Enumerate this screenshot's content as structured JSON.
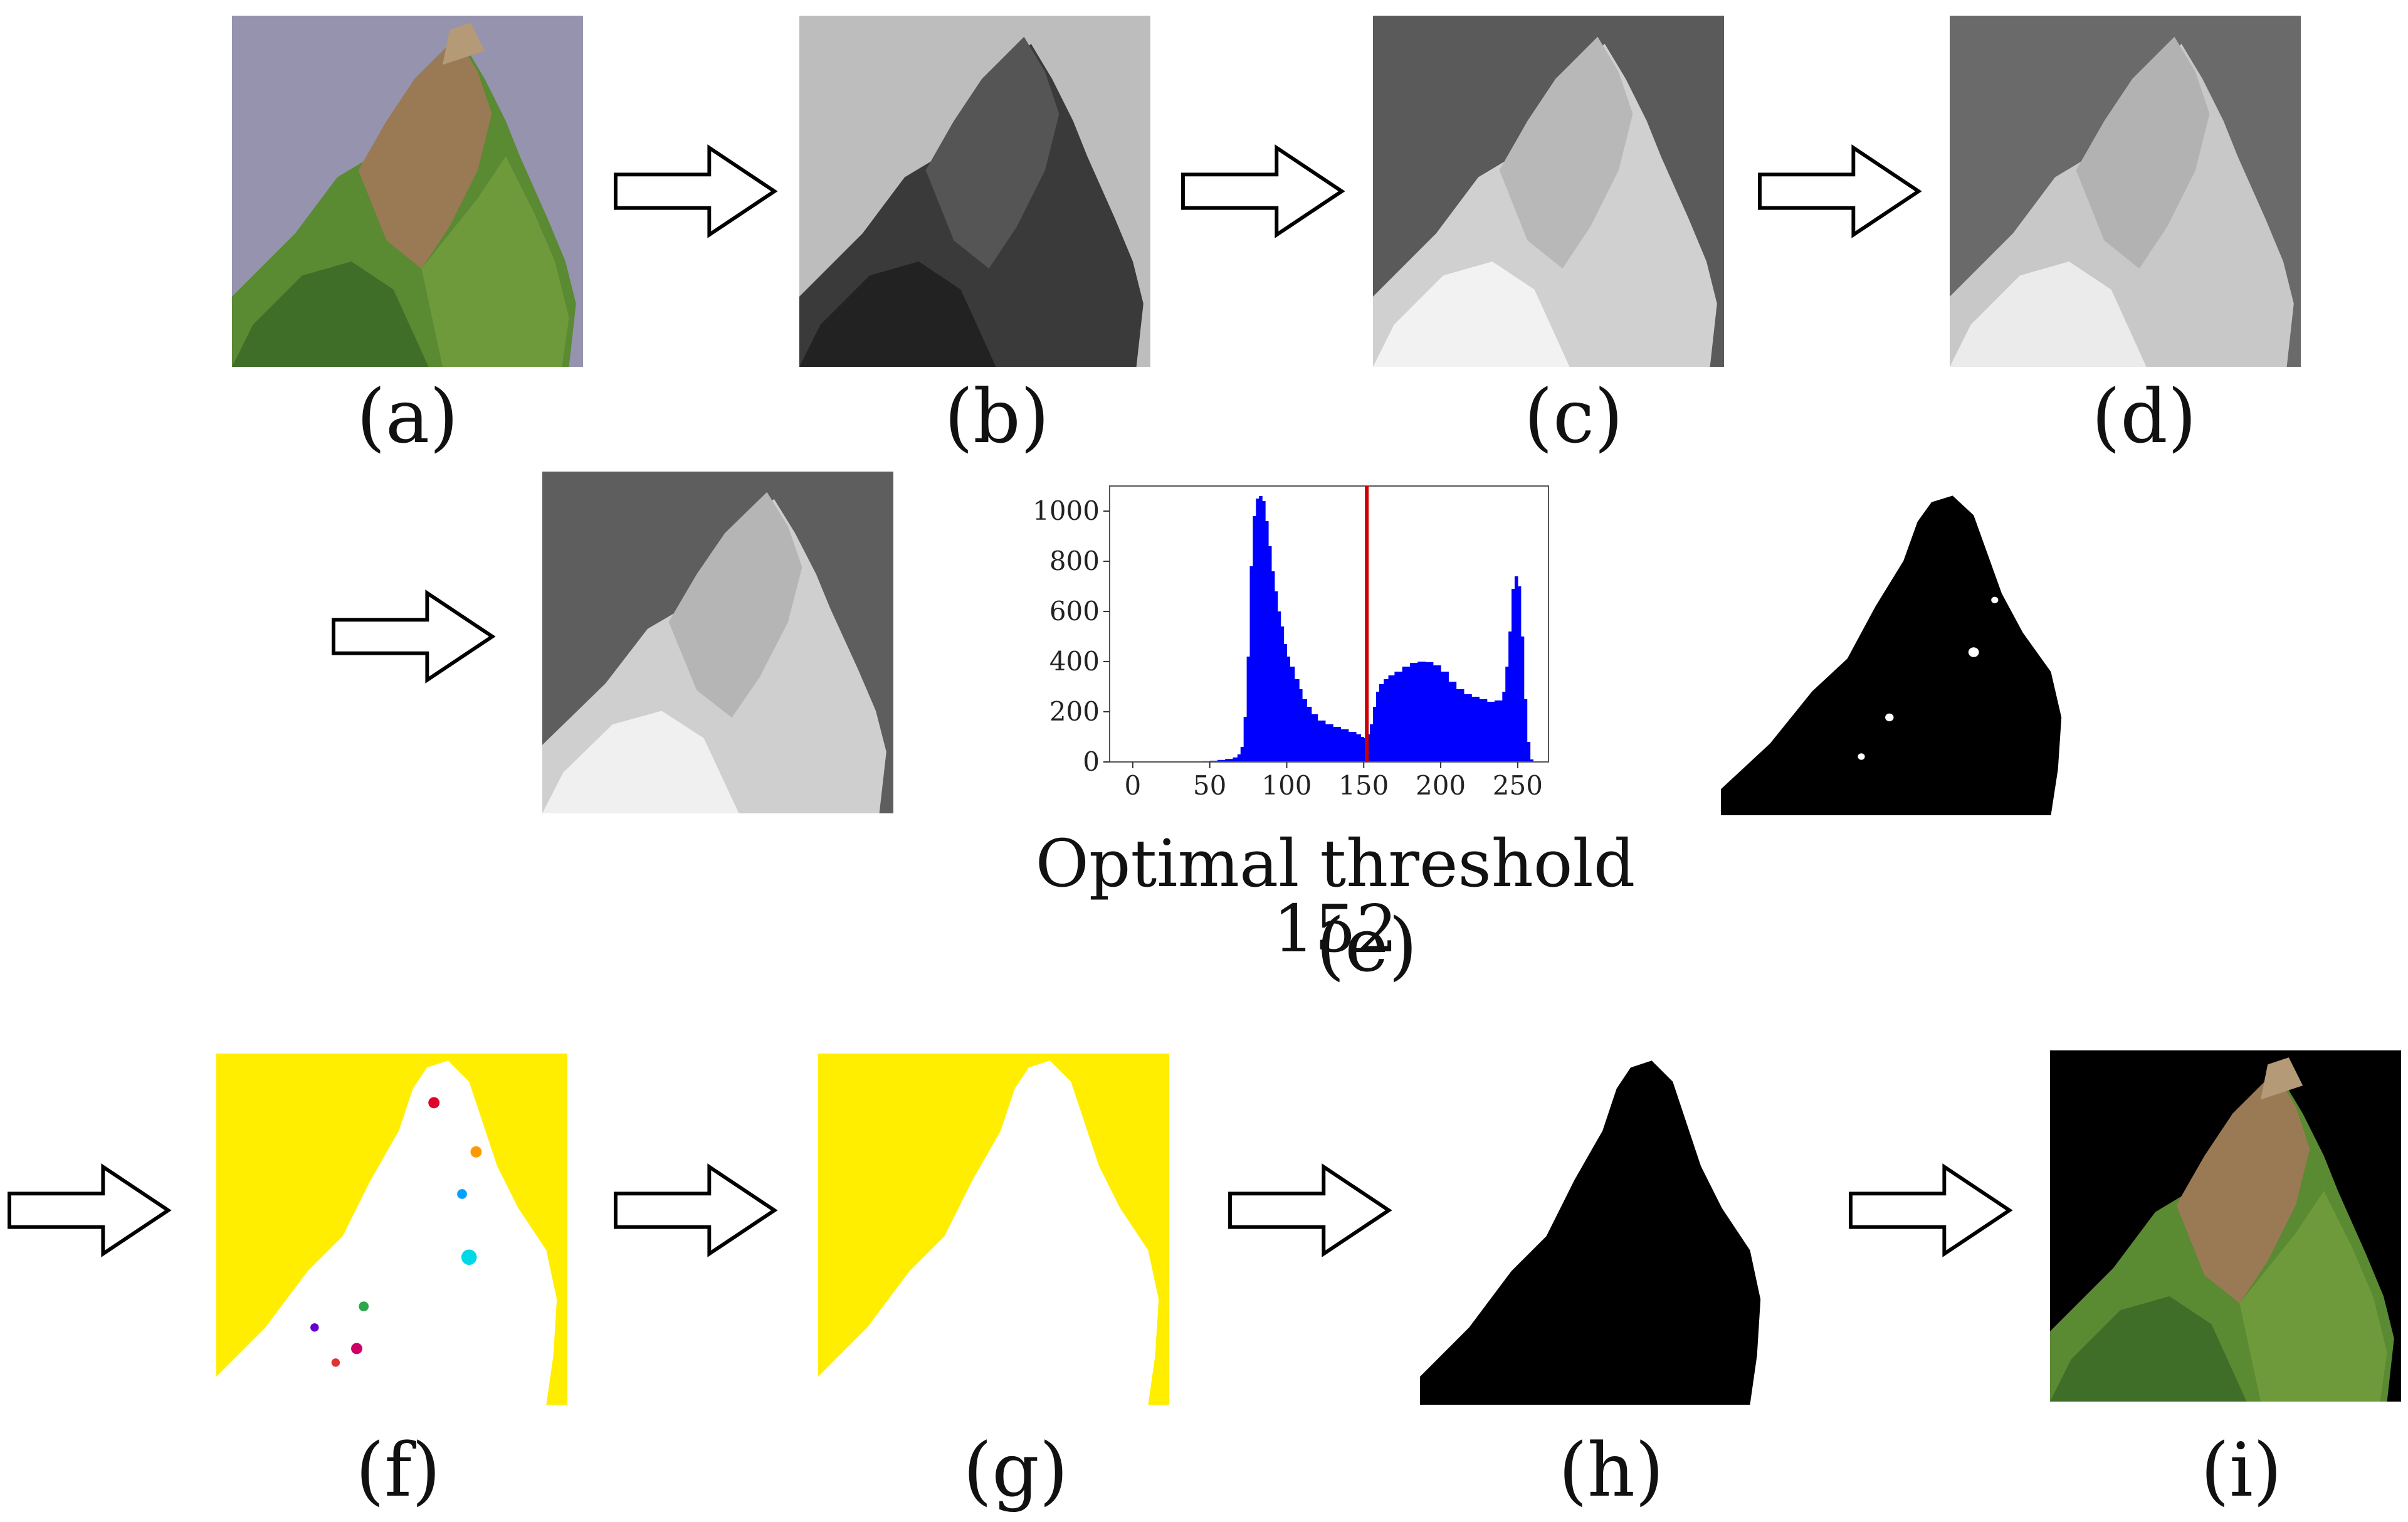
{
  "captions": {
    "a": "(a)",
    "b": "(b)",
    "c": "(c)",
    "d": "(d)",
    "e": "(e)",
    "f": "(f)",
    "g": "(g)",
    "h": "(h)",
    "i": "(i)"
  },
  "threshold_text": "Optimal threshold 152",
  "colors": {
    "background_yellow": "#ffee00",
    "histogram_bars": "#0000ff",
    "threshold_line": "#cc0000",
    "leaf_green": "#5a8a32",
    "leaf_brown": "#9a7a55",
    "surface_purple": "#8c8aa6"
  },
  "chart_data": {
    "type": "bar",
    "title": "",
    "xlabel": "",
    "ylabel": "",
    "xlim": [
      -15,
      270
    ],
    "ylim": [
      0,
      1100
    ],
    "x_ticks": [
      0,
      50,
      100,
      150,
      200,
      250
    ],
    "y_ticks": [
      0,
      200,
      400,
      600,
      800,
      1000
    ],
    "threshold": 152,
    "x": [
      40,
      45,
      50,
      55,
      60,
      65,
      68,
      70,
      72,
      74,
      76,
      78,
      80,
      82,
      84,
      86,
      88,
      90,
      92,
      94,
      96,
      98,
      100,
      102,
      105,
      108,
      110,
      113,
      116,
      120,
      125,
      130,
      135,
      140,
      145,
      148,
      150,
      152,
      154,
      156,
      158,
      160,
      163,
      166,
      170,
      175,
      180,
      185,
      190,
      195,
      200,
      205,
      210,
      215,
      220,
      225,
      230,
      235,
      240,
      242,
      244,
      246,
      248,
      250,
      252,
      254,
      256,
      258
    ],
    "values": [
      2,
      3,
      5,
      8,
      12,
      18,
      30,
      60,
      180,
      420,
      780,
      980,
      1050,
      1060,
      1040,
      960,
      860,
      760,
      680,
      600,
      540,
      470,
      420,
      380,
      330,
      290,
      250,
      220,
      190,
      165,
      150,
      140,
      130,
      120,
      110,
      100,
      95,
      110,
      150,
      220,
      280,
      310,
      330,
      345,
      360,
      380,
      395,
      400,
      398,
      385,
      360,
      320,
      290,
      270,
      260,
      250,
      240,
      245,
      280,
      380,
      520,
      690,
      740,
      700,
      500,
      250,
      80,
      10
    ]
  }
}
